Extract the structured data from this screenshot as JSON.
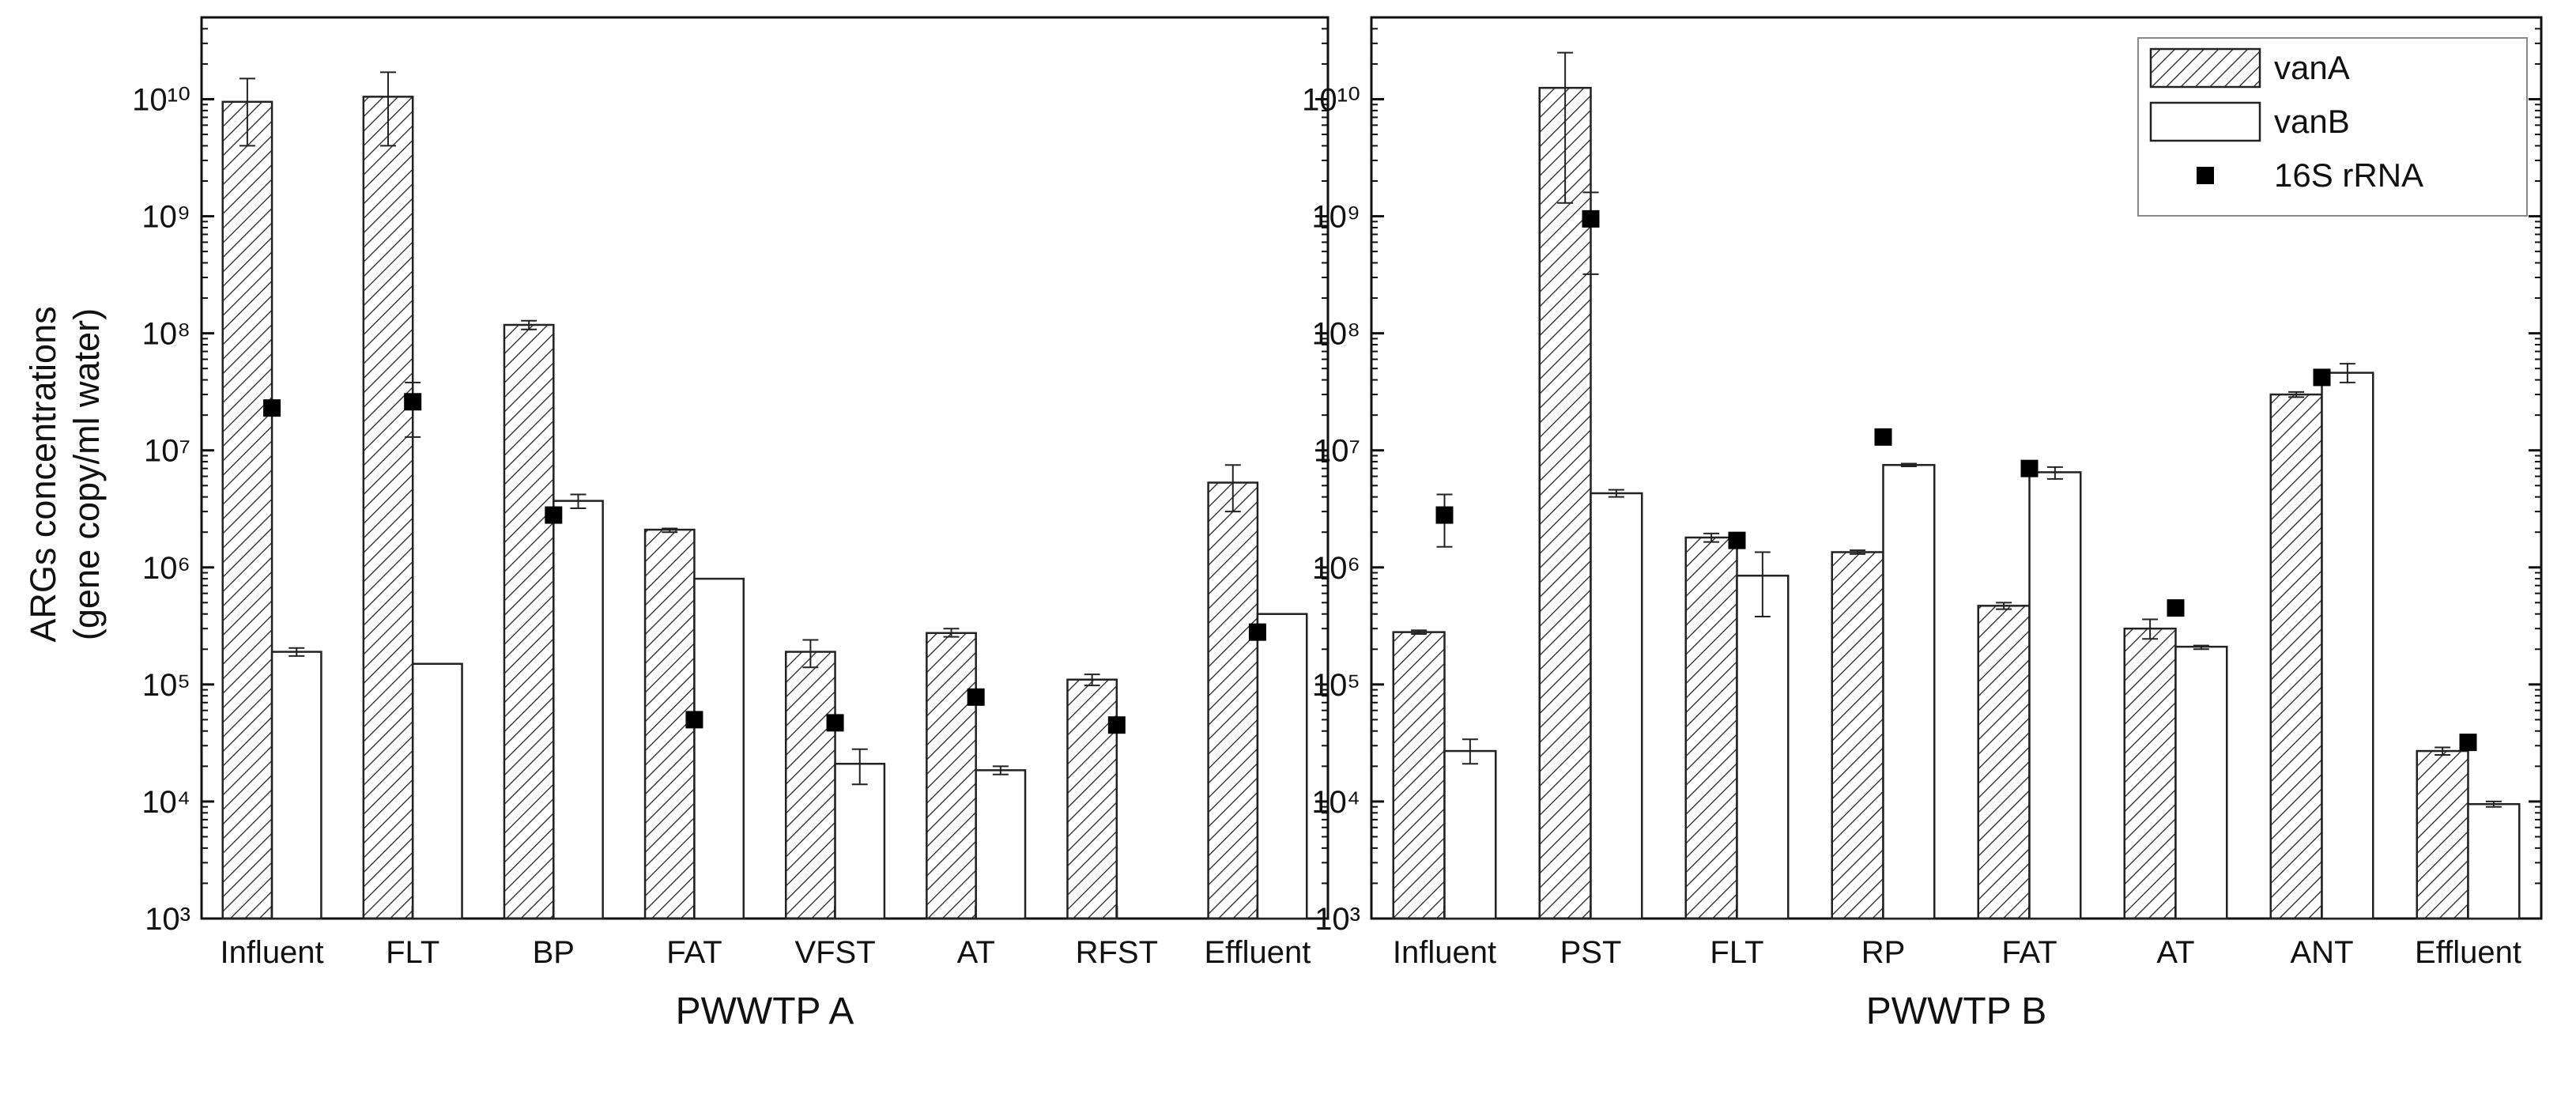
{
  "figure": {
    "ylabel_line1": "ARGs concentrations",
    "ylabel_line2": "(gene copy/ml water)"
  },
  "colors": {
    "axis": "#111111",
    "bar_edge": "#222222",
    "marker": "#000000",
    "background": "#ffffff"
  },
  "legend": {
    "items": [
      {
        "label": "vanA",
        "style": "hatched-bar"
      },
      {
        "label": "vanB",
        "style": "open-bar"
      },
      {
        "label": "16S rRNA",
        "style": "square-marker"
      }
    ]
  },
  "chart_data": [
    {
      "type": "bar",
      "title": "",
      "xlabel": "PWWTP A",
      "ylabel": "ARGs concentrations (gene copy/ml water)",
      "yscale": "log",
      "ylim": [
        1000,
        50000000000
      ],
      "yticks": [
        1000,
        10000,
        100000,
        1000000,
        10000000,
        100000000,
        1000000000,
        10000000000
      ],
      "categories": [
        "Influent",
        "FLT",
        "BP",
        "FAT",
        "VFST",
        "AT",
        "RFST",
        "Effluent"
      ],
      "series": [
        {
          "name": "vanA",
          "style": "hatched-bar",
          "values": [
            9500000000,
            10500000000,
            118000000,
            2100000,
            190000,
            275000,
            110000,
            5300000
          ],
          "err_low": [
            4000000000,
            4000000000,
            108000000,
            2000000,
            140000,
            255000,
            98000,
            3000000
          ],
          "err_high": [
            15000000000,
            17000000000,
            128000000,
            2150000,
            240000,
            300000,
            122000,
            7500000
          ]
        },
        {
          "name": "vanB",
          "style": "open-bar",
          "values": [
            190000,
            150000,
            3700000,
            800000,
            21000,
            18500,
            null,
            400000
          ],
          "err_low": [
            175000,
            null,
            3200000,
            null,
            14000,
            17000,
            null,
            null
          ],
          "err_high": [
            205000,
            null,
            4200000,
            null,
            28000,
            20000,
            null,
            null
          ]
        },
        {
          "name": "16S rRNA",
          "style": "square-marker",
          "values": [
            23000000,
            26000000,
            2800000,
            50000,
            47000,
            78000,
            45000,
            280000
          ],
          "err_low": [
            null,
            13000000,
            null,
            null,
            null,
            null,
            null,
            null
          ],
          "err_high": [
            null,
            38000000,
            null,
            null,
            null,
            null,
            null,
            null
          ]
        }
      ]
    },
    {
      "type": "bar",
      "title": "",
      "xlabel": "PWWTP B",
      "ylabel": "",
      "yscale": "log",
      "ylim": [
        1000,
        50000000000
      ],
      "yticks": [
        1000,
        10000,
        100000,
        1000000,
        10000000,
        100000000,
        1000000000,
        10000000000
      ],
      "legend_position": "top-right",
      "categories": [
        "Influent",
        "PST",
        "FLT",
        "RP",
        "FAT",
        "AT",
        "ANT",
        "Effluent"
      ],
      "series": [
        {
          "name": "vanA",
          "style": "hatched-bar",
          "values": [
            280000,
            12500000000,
            1800000,
            1350000,
            470000,
            300000,
            30000000,
            27000
          ],
          "err_low": [
            270000,
            1300000000,
            1650000,
            1300000,
            440000,
            245000,
            28500000,
            25000
          ],
          "err_high": [
            290000,
            25000000000,
            1950000,
            1400000,
            500000,
            360000,
            31500000,
            29000
          ]
        },
        {
          "name": "vanB",
          "style": "open-bar",
          "values": [
            27000,
            4300000,
            850000,
            7500000,
            6500000,
            210000,
            46000000,
            9500
          ],
          "err_low": [
            21000,
            4000000,
            380000,
            7300000,
            5700000,
            200000,
            38000000,
            9000
          ],
          "err_high": [
            34000,
            4600000,
            1350000,
            7700000,
            7200000,
            215000,
            55000000,
            10000
          ]
        },
        {
          "name": "16S rRNA",
          "style": "square-marker",
          "values": [
            2800000,
            950000000,
            1700000,
            13000000,
            7000000,
            450000,
            42000000,
            32000
          ],
          "err_low": [
            1500000,
            320000000,
            null,
            null,
            null,
            null,
            null,
            null
          ],
          "err_high": [
            4200000,
            1600000000,
            null,
            null,
            null,
            null,
            null,
            null
          ]
        }
      ]
    }
  ]
}
